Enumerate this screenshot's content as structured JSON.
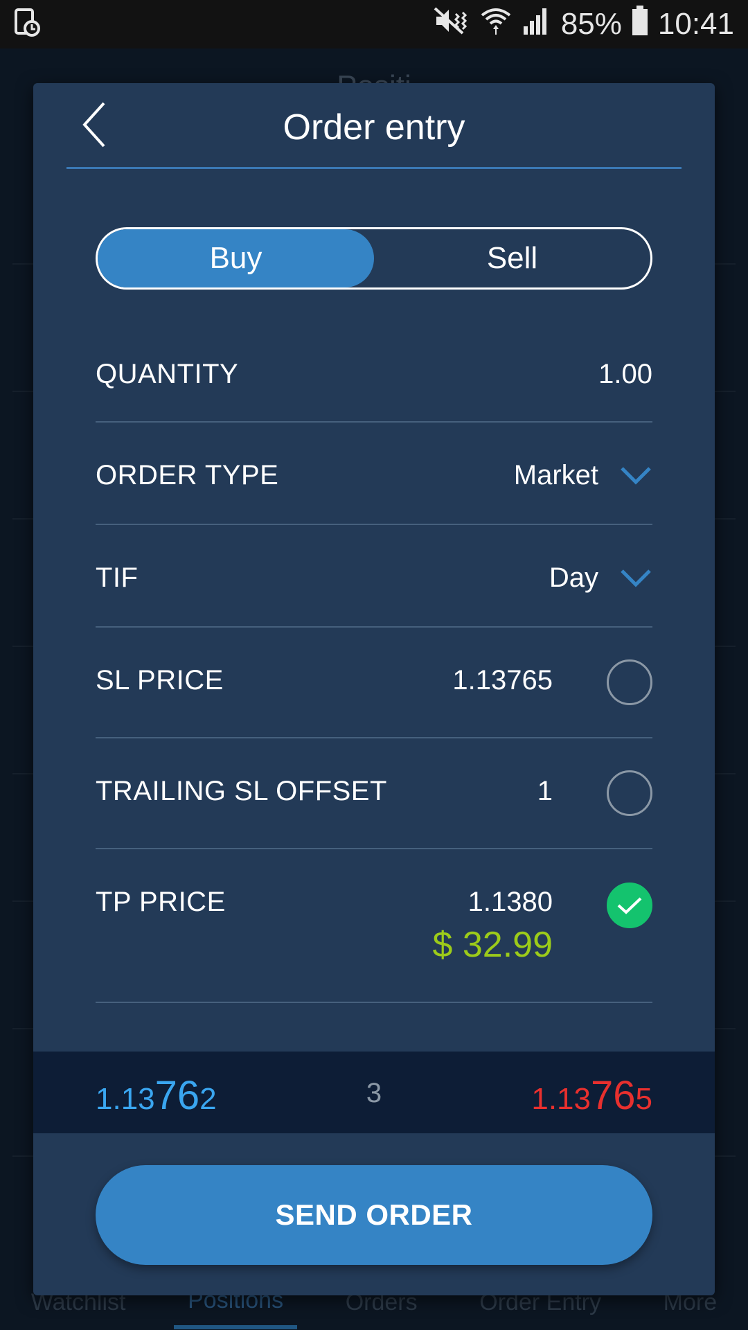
{
  "status_bar": {
    "battery": "85%",
    "time": "10:41"
  },
  "background": {
    "title": "Positi",
    "nav": [
      {
        "label": "Watchlist"
      },
      {
        "label": "Positions"
      },
      {
        "label": "Orders"
      },
      {
        "label": "Order Entry"
      },
      {
        "label": "More"
      }
    ]
  },
  "dialog": {
    "title": "Order entry",
    "side_toggle": {
      "buy": "Buy",
      "sell": "Sell",
      "selected": "Buy"
    },
    "rows": {
      "quantity": {
        "label": "QUANTITY",
        "value": "1.00"
      },
      "order_type": {
        "label": "ORDER TYPE",
        "value": "Market"
      },
      "tif": {
        "label": "TIF",
        "value": "Day"
      },
      "sl_price": {
        "label": "SL PRICE",
        "value": "1.13765",
        "checked": false
      },
      "trailing_sl": {
        "label": "TRAILING SL OFFSET",
        "value": "1",
        "checked": false
      },
      "tp_price": {
        "label": "TP PRICE",
        "value": "1.1380",
        "pl": "$ 32.99",
        "checked": true
      }
    },
    "prices": {
      "bid": {
        "prefix": "1.13",
        "big": "76",
        "suffix": "2"
      },
      "spread": "3",
      "ask": {
        "prefix": "1.13",
        "big": "76",
        "suffix": "5"
      }
    },
    "send_button": "SEND ORDER"
  },
  "colors": {
    "accent": "#3584c5",
    "bid": "#3aa6f0",
    "ask": "#e8302e",
    "profit": "#9ccb1a",
    "check": "#14c36e"
  }
}
